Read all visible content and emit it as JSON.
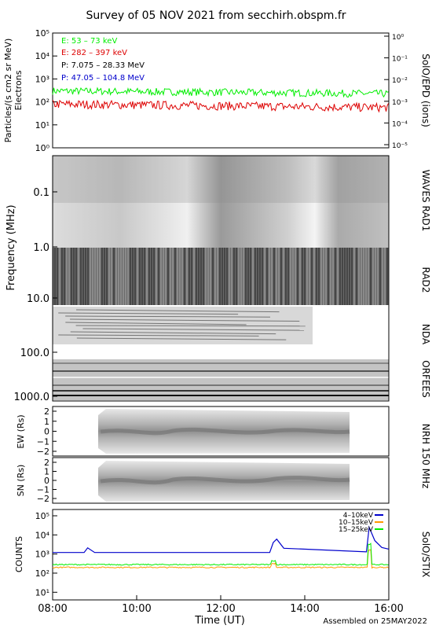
{
  "title": "Survey of 05 NOV 2021 from secchirh.obspm.fr",
  "footer": "Assembled on 25MAY2022",
  "colors": {
    "green": "#00ee00",
    "red": "#dd0000",
    "black": "#000000",
    "blue": "#0000cc",
    "orange": "#ff9900"
  },
  "chart_data": [
    {
      "type": "line",
      "panel": "SolO/EPD",
      "right_label": "SolO/EPD (ions)",
      "ylabel": [
        "Particles/(s cm2 sr MeV)",
        "Electrons"
      ],
      "yscale": "log",
      "ylim_exp": [
        0,
        5
      ],
      "yticks": [
        "10⁰",
        "10¹",
        "10²",
        "10³",
        "10⁴",
        "10⁵"
      ],
      "y2scale": "log",
      "y2ticks": [
        "10⁻⁵",
        "10⁻⁴",
        "10⁻³",
        "10⁻²",
        "10⁻¹",
        "10⁰"
      ],
      "legend_placement": "top-left",
      "series": [
        {
          "name": "E: 53 – 73 keV",
          "color": "#00ee00",
          "level": 300
        },
        {
          "name": "E: 282 – 397 keV",
          "color": "#dd0000",
          "level": 80
        },
        {
          "name": "P: 7.075 – 28.33 MeV",
          "color": "#000000"
        },
        {
          "name": "P: 47.05 – 104.8 MeV",
          "color": "#0000cc"
        }
      ]
    },
    {
      "type": "heatmap",
      "panel": "Radio spectrum",
      "ylabel": "Frequency (MHz)",
      "yscale": "log",
      "yticks": [
        "0.1",
        "1.0",
        "10.0",
        "100.0",
        "1000.0"
      ],
      "right_labels": [
        "WAVES RAD1",
        "RAD2",
        "NDA",
        "ORFEES"
      ]
    },
    {
      "type": "heatmap",
      "panel": "NRH 150 MHz",
      "right_label": "NRH 150 MHz",
      "subplots": [
        {
          "ylabel": "EW (Rs)",
          "yticks": [
            "2",
            "1",
            "0",
            "−1",
            "−2"
          ]
        },
        {
          "ylabel": "SN (Rs)",
          "yticks": [
            "2",
            "1",
            "0",
            "−1",
            "−2"
          ]
        }
      ]
    },
    {
      "type": "line",
      "panel": "SolO/STIX",
      "right_label": "SolO/STIX",
      "ylabel": "COUNTS",
      "yscale": "log",
      "yticks": [
        "10¹",
        "10²",
        "10³",
        "10⁴",
        "10⁵"
      ],
      "legend_placement": "top-right",
      "series": [
        {
          "name": "4–10keV",
          "color": "#0000cc",
          "baseline": 1200,
          "x": [
            "08:00",
            "08:45",
            "08:50",
            "09:00",
            "13:10",
            "13:15",
            "13:20",
            "13:30",
            "15:28",
            "15:32",
            "15:40",
            "15:50",
            "16:00"
          ],
          "y": [
            1200,
            1200,
            2100,
            1200,
            1200,
            4000,
            6000,
            2000,
            1300,
            25000,
            5000,
            2200,
            1800
          ]
        },
        {
          "name": "10–15keV",
          "color": "#ff9900",
          "baseline": 200
        },
        {
          "name": "15–25keV",
          "color": "#00ee00",
          "baseline": 280
        }
      ]
    }
  ],
  "xaxis": {
    "label": "Time (UT)",
    "ticks": [
      "08:00",
      "10:00",
      "12:00",
      "14:00",
      "16:00"
    ]
  }
}
